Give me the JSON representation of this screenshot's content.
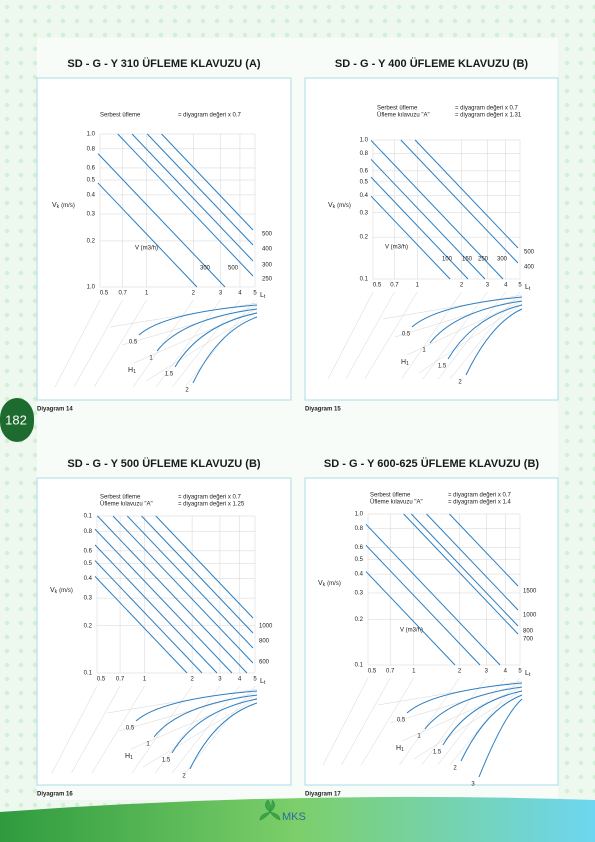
{
  "page_number": "182",
  "logo": "MKS",
  "diagrams": [
    {
      "title": "SD - G - Y 310 ÜFLEME KLAVUZU (A)",
      "caption": "Diyagram 14",
      "notes": [
        {
          "label": "Serbest üfleme",
          "value": "= diyagram değeri x 0.7"
        }
      ],
      "y_axis_label": "V",
      "y_axis_subscript": "k",
      "y_unit": "(m/s)",
      "y_labels": [
        "1.0",
        "0.8",
        "0.6",
        "0.5",
        "0.4",
        "0.3",
        "0.2",
        "1.0"
      ],
      "x_labels": [
        "0.5",
        "0.7",
        "1",
        "2",
        "3",
        "4",
        "5"
      ],
      "x_axis_label": "L",
      "x_axis_subscript": "t",
      "flow_label": "V (m3/h)",
      "flow_values": [
        "300",
        "500",
        "500",
        "400",
        "300",
        "250"
      ],
      "h_label": "H",
      "h_subscript": "1",
      "h_values": [
        "0.5",
        "1",
        "1.5",
        "2"
      ]
    },
    {
      "title": "SD - G - Y 400 ÜFLEME KLAVUZU (B)",
      "caption": "Diyagram 15",
      "notes": [
        {
          "label": "Serbest üfleme",
          "value": "= diyagram değeri x 0.7"
        },
        {
          "label": "Üfleme kılavuzu \"A\"",
          "value": "= diyagram değeri x 1.31"
        }
      ],
      "y_axis_label": "V",
      "y_axis_subscript": "k",
      "y_unit": "(m/s)",
      "y_labels": [
        "1.0",
        "0.8",
        "0.6",
        "0.5",
        "0.4",
        "0.3",
        "0.2",
        "0.1"
      ],
      "x_labels": [
        "0.5",
        "0.7",
        "1",
        "2",
        "3",
        "4",
        "5"
      ],
      "x_axis_label": "L",
      "x_axis_subscript": "t",
      "flow_label": "V (m3/h)",
      "flow_values": [
        "100",
        "150",
        "250",
        "300",
        "500",
        "400"
      ],
      "h_label": "H",
      "h_subscript": "1",
      "h_values": [
        "0.5",
        "1",
        "1.5",
        "2"
      ]
    },
    {
      "title": "SD - G - Y 500 ÜFLEME KLAVUZU (B)",
      "caption": "Diyagram 16",
      "notes": [
        {
          "label": "Serbest üfleme",
          "value": "= diyagram değeri x 0.7"
        },
        {
          "label": "Üfleme kılavuzu \"A\"",
          "value": "= diyagram değeri x 1.25"
        }
      ],
      "y_axis_label": "V",
      "y_axis_subscript": "k",
      "y_unit": "(m/s)",
      "y_labels": [
        "0.1",
        "0.8",
        "0.6",
        "0.5",
        "0.4",
        "0.3",
        "0.2",
        "0.1"
      ],
      "x_labels": [
        "0.5",
        "0.7",
        "1",
        "2",
        "3",
        "4",
        "5"
      ],
      "x_axis_label": "L",
      "x_axis_subscript": "t",
      "flow_values": [
        "1000",
        "800",
        "600"
      ],
      "h_label": "H",
      "h_subscript": "1",
      "h_values": [
        "0.5",
        "1",
        "1.5",
        "2"
      ]
    },
    {
      "title": "SD - G - Y 600-625 ÜFLEME KLAVUZU (B)",
      "caption": "Diyagram 17",
      "notes": [
        {
          "label": "Serbest üfleme",
          "value": "= diyagram değeri x 0.7"
        },
        {
          "label": "Üfleme kılavuzu \"A\"",
          "value": "= diyagram değeri x 1.4"
        }
      ],
      "y_axis_label": "V",
      "y_axis_subscript": "k",
      "y_unit": "(m/s)",
      "y_labels": [
        "1.0",
        "0.8",
        "0.6",
        "0.5",
        "0.4",
        "0.3",
        "0.2",
        "0.1"
      ],
      "x_labels": [
        "0.5",
        "0.7",
        "1",
        "2",
        "3",
        "4",
        "5"
      ],
      "x_axis_label": "L",
      "x_axis_subscript": "t",
      "flow_label": "V (m3/h)",
      "flow_values": [
        "1500",
        "1000",
        "800",
        "700"
      ],
      "h_label": "H",
      "h_subscript": "1",
      "h_values": [
        "0.5",
        "1",
        "1.5",
        "2",
        "3"
      ]
    }
  ]
}
